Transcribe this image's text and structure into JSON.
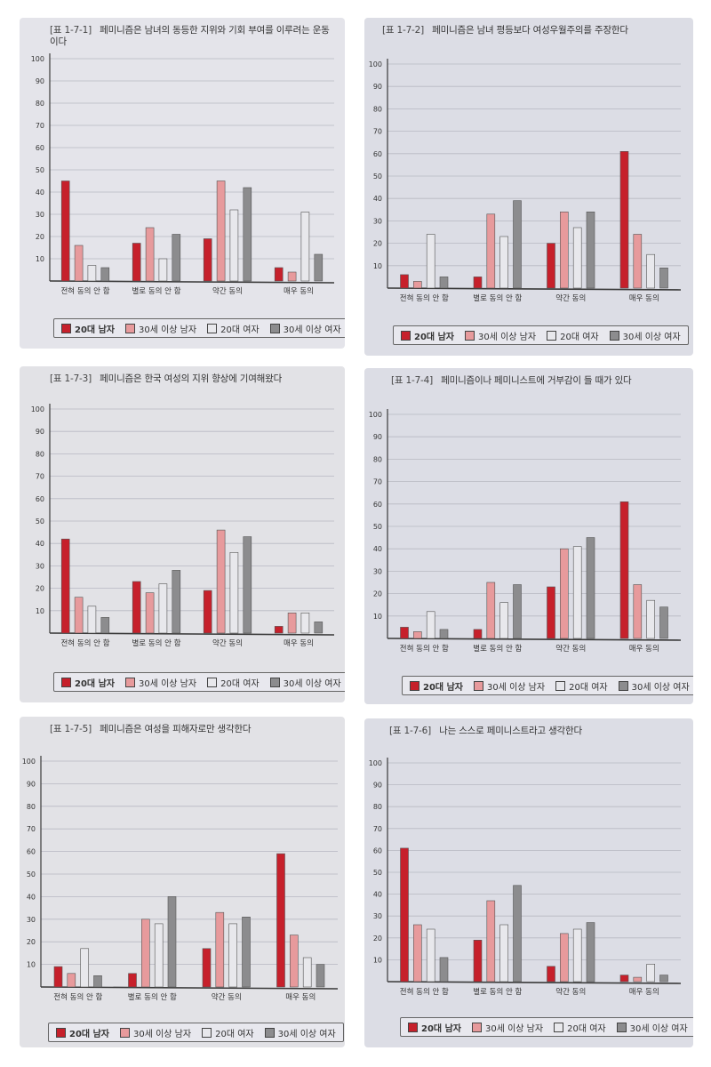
{
  "series_names": [
    "20대 남자",
    "30세 이상 남자",
    "20대 여자",
    "30세 이상 여자"
  ],
  "colors": {
    "s0": "#c6202b",
    "s1": "#e79a9c",
    "s2": "#e8e8ec",
    "s3": "#8c8c8e",
    "stroke": "#555555",
    "grid": "#b7b8c2",
    "axis": "#3a3a3a"
  },
  "chart_data": [
    {
      "type": "bar",
      "code": "[표 1-7-1]",
      "title": "페미니즘은 남녀의 동등한 지위와 기회 부여를 이루려는 운동이다",
      "categories": [
        "전혀 동의 안 함",
        "별로 동의 안 함",
        "약간 동의",
        "매우 동의"
      ],
      "yticks": [
        10,
        20,
        30,
        40,
        50,
        60,
        70,
        80,
        90,
        100
      ],
      "ylim": [
        0,
        100
      ],
      "series": [
        {
          "name": "20대 남자",
          "values": [
            45,
            17,
            19,
            6
          ]
        },
        {
          "name": "30세 이상 남자",
          "values": [
            16,
            24,
            45,
            4
          ]
        },
        {
          "name": "20대 여자",
          "values": [
            7,
            10,
            32,
            31
          ]
        },
        {
          "name": "30세 이상 여자",
          "values": [
            6,
            21,
            42,
            12
          ]
        }
      ]
    },
    {
      "type": "bar",
      "code": "[표 1-7-2]",
      "title": "페미니즘은 남녀 평등보다 여성우월주의를 주장한다",
      "categories": [
        "전혀 동의 안 함",
        "별로 동의 안 함",
        "약간 동의",
        "매우 동의"
      ],
      "yticks": [
        10,
        20,
        30,
        40,
        50,
        60,
        70,
        80,
        90,
        100
      ],
      "ylim": [
        0,
        100
      ],
      "series": [
        {
          "name": "20대 남자",
          "values": [
            6,
            5,
            20,
            61
          ]
        },
        {
          "name": "30세 이상 남자",
          "values": [
            3,
            33,
            34,
            24
          ]
        },
        {
          "name": "20대 여자",
          "values": [
            24,
            23,
            27,
            15
          ]
        },
        {
          "name": "30세 이상 여자",
          "values": [
            5,
            39,
            34,
            9
          ]
        }
      ]
    },
    {
      "type": "bar",
      "code": "[표 1-7-3]",
      "title": "페미니즘은 한국 여성의 지위 향상에 기여해왔다",
      "categories": [
        "전혀 동의 안 함",
        "별로 동의 안 함",
        "약간 동의",
        "매우 동의"
      ],
      "yticks": [
        10,
        20,
        30,
        40,
        50,
        60,
        70,
        80,
        90,
        100
      ],
      "ylim": [
        0,
        100
      ],
      "series": [
        {
          "name": "20대 남자",
          "values": [
            42,
            23,
            19,
            3
          ]
        },
        {
          "name": "30세 이상 남자",
          "values": [
            16,
            18,
            46,
            9
          ]
        },
        {
          "name": "20대 여자",
          "values": [
            12,
            22,
            36,
            9
          ]
        },
        {
          "name": "30세 이상 여자",
          "values": [
            7,
            28,
            43,
            5
          ]
        }
      ]
    },
    {
      "type": "bar",
      "code": "[표 1-7-4]",
      "title": "페미니즘이나 페미니스트에 거부감이 들 때가 있다",
      "categories": [
        "전혀 동의 안 함",
        "별로 동의 안 함",
        "약간 동의",
        "매우 동의"
      ],
      "yticks": [
        10,
        20,
        30,
        40,
        50,
        60,
        70,
        80,
        90,
        100
      ],
      "ylim": [
        0,
        100
      ],
      "series": [
        {
          "name": "20대 남자",
          "values": [
            5,
            4,
            23,
            61
          ]
        },
        {
          "name": "30세 이상 남자",
          "values": [
            3,
            25,
            40,
            24
          ]
        },
        {
          "name": "20대 여자",
          "values": [
            12,
            16,
            41,
            17
          ]
        },
        {
          "name": "30세 이상 여자",
          "values": [
            4,
            24,
            45,
            14
          ]
        }
      ]
    },
    {
      "type": "bar",
      "code": "[표 1-7-5]",
      "title": "페미니즘은 여성을 피해자로만 생각한다",
      "categories": [
        "전혀 동의 안 함",
        "별로 동의 안 함",
        "약간 동의",
        "매우 동의"
      ],
      "yticks": [
        10,
        20,
        30,
        40,
        50,
        60,
        70,
        80,
        90,
        100
      ],
      "ylim": [
        0,
        100
      ],
      "series": [
        {
          "name": "20대 남자",
          "values": [
            9,
            6,
            17,
            59
          ]
        },
        {
          "name": "30세 이상 남자",
          "values": [
            6,
            30,
            33,
            23
          ]
        },
        {
          "name": "20대 여자",
          "values": [
            17,
            28,
            28,
            13
          ]
        },
        {
          "name": "30세 이상 여자",
          "values": [
            5,
            40,
            31,
            10
          ]
        }
      ]
    },
    {
      "type": "bar",
      "code": "[표 1-7-6]",
      "title": "나는 스스로 페미니스트라고 생각한다",
      "categories": [
        "전혀 동의 안 함",
        "별로 동의 안 함",
        "약간 동의",
        "매우 동의"
      ],
      "yticks": [
        10,
        20,
        30,
        40,
        50,
        60,
        70,
        80,
        90,
        100
      ],
      "ylim": [
        0,
        100
      ],
      "series": [
        {
          "name": "20대 남자",
          "values": [
            61,
            19,
            7,
            3
          ]
        },
        {
          "name": "30세 이상 남자",
          "values": [
            26,
            37,
            22,
            2
          ]
        },
        {
          "name": "20대 여자",
          "values": [
            24,
            26,
            24,
            8
          ]
        },
        {
          "name": "30세 이상 여자",
          "values": [
            11,
            44,
            27,
            3
          ]
        }
      ]
    }
  ]
}
